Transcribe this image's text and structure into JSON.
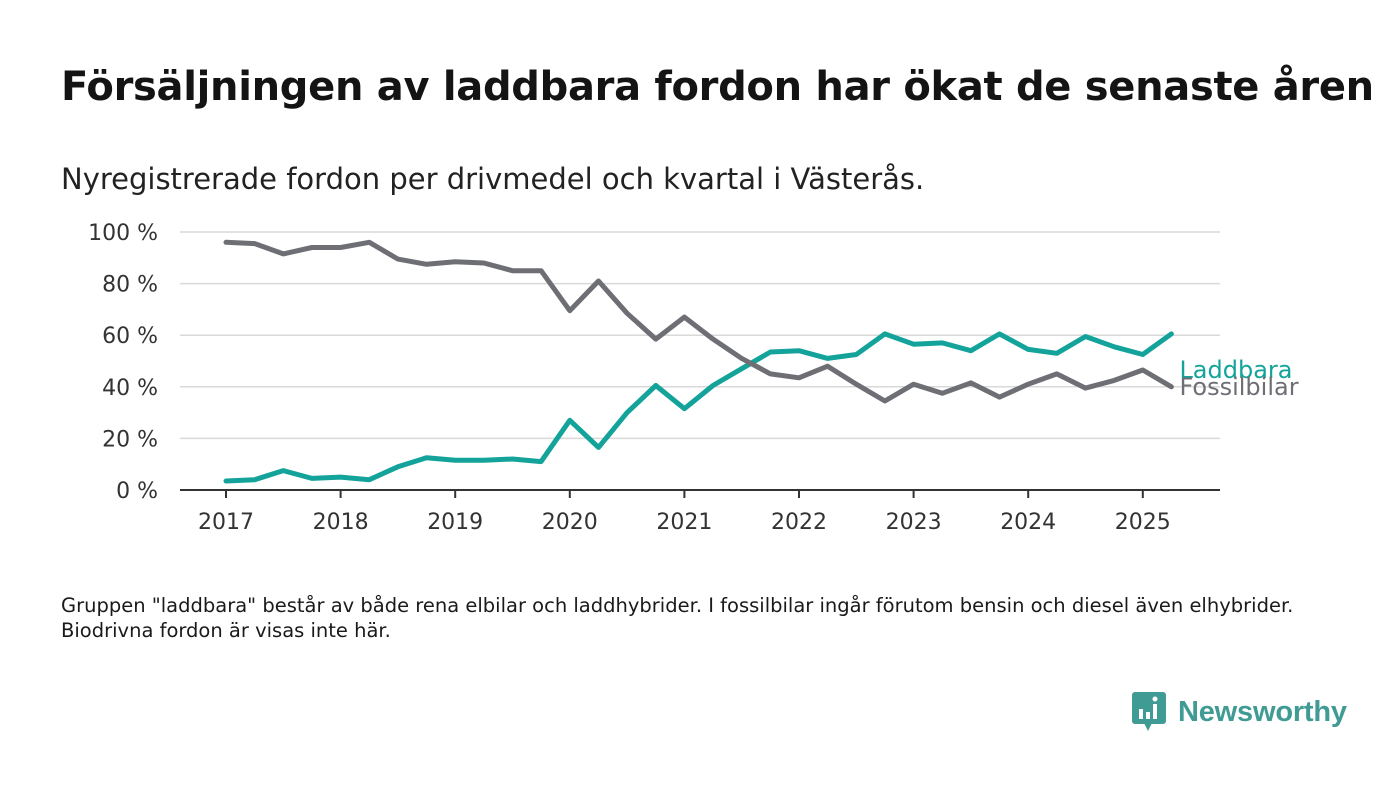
{
  "title": "Försäljningen av laddbara fordon har ökat de senaste åren",
  "subtitle": "Nyregistrerade fordon per drivmedel och kvartal i Västerås.",
  "footnote": "Gruppen \"laddbara\" består av både rena elbilar och laddhybrider. I fossilbilar ingår förutom bensin och diesel även elhybrider. Biodrivna fordon är visas inte här.",
  "brand": {
    "name": "Newsworthy",
    "icon": "newsworthy-logo-icon",
    "color": "#3f9b93"
  },
  "chart_data": {
    "type": "line",
    "x": [
      "2017 Q1",
      "2017 Q2",
      "2017 Q3",
      "2017 Q4",
      "2018 Q1",
      "2018 Q2",
      "2018 Q3",
      "2018 Q4",
      "2019 Q1",
      "2019 Q2",
      "2019 Q3",
      "2019 Q4",
      "2020 Q1",
      "2020 Q2",
      "2020 Q3",
      "2020 Q4",
      "2021 Q1",
      "2021 Q2",
      "2021 Q3",
      "2021 Q4",
      "2022 Q1",
      "2022 Q2",
      "2022 Q3",
      "2022 Q4",
      "2023 Q1",
      "2023 Q2",
      "2023 Q3",
      "2023 Q4",
      "2024 Q1",
      "2024 Q2",
      "2024 Q3",
      "2024 Q4",
      "2025 Q1",
      "2025 Q2"
    ],
    "x_tick_labels": [
      "2017",
      "2018",
      "2019",
      "2020",
      "2021",
      "2022",
      "2023",
      "2024",
      "2025"
    ],
    "y_tick_labels": [
      "0 %",
      "20 %",
      "40 %",
      "60 %",
      "80 %",
      "100 %"
    ],
    "y_ticks": [
      0,
      20,
      40,
      60,
      80,
      100
    ],
    "ylim": [
      0,
      100
    ],
    "grid": true,
    "series": [
      {
        "name": "Laddbara",
        "color": "#13a39a",
        "values": [
          3.5,
          4,
          7.5,
          4.5,
          5,
          4,
          9,
          12.5,
          11.5,
          11.5,
          12,
          11,
          27,
          16.5,
          30,
          40.5,
          31.5,
          40.5,
          47,
          53.5,
          54,
          51,
          52.5,
          60.5,
          56.5,
          57,
          54,
          60.5,
          54.5,
          53,
          59.5,
          55.5,
          52.5,
          60.5
        ]
      },
      {
        "name": "Fossilbilar",
        "color": "#6e6e75",
        "values": [
          96,
          95.5,
          91.5,
          94,
          94,
          96,
          89.5,
          87.5,
          88.5,
          88,
          85,
          85,
          69.5,
          81,
          68.5,
          58.5,
          67,
          58.5,
          51,
          45,
          43.5,
          48,
          41,
          34.5,
          41,
          37.5,
          41.5,
          36,
          41,
          45,
          39.5,
          42.5,
          46.5,
          40
        ]
      }
    ],
    "xlabel": "",
    "ylabel": ""
  }
}
